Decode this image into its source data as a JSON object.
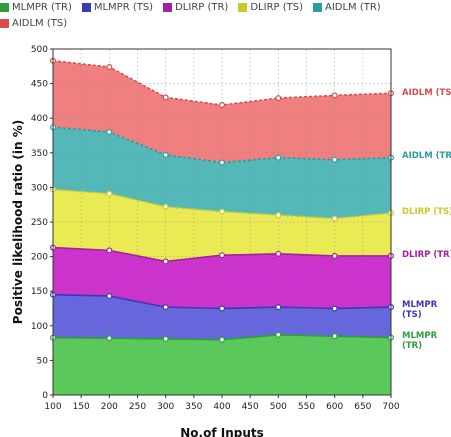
{
  "chart_data": {
    "type": "area",
    "stacked": true,
    "xlabel": "No.of Inputs",
    "ylabel": "Positive likelihood ratio (in %)",
    "x": [
      100,
      200,
      300,
      400,
      500,
      600,
      700
    ],
    "xlim": [
      100,
      700
    ],
    "ylim": [
      0,
      500
    ],
    "x_ticks": [
      100,
      150,
      200,
      250,
      300,
      350,
      400,
      450,
      500,
      550,
      600,
      650,
      700
    ],
    "y_ticks": [
      0,
      50,
      100,
      150,
      200,
      250,
      300,
      350,
      400,
      450,
      500
    ],
    "grid": true,
    "legend_position": "top",
    "series": [
      {
        "name": "MLMPR (TR)",
        "end_label": "MLMPR\n(TR)",
        "color": "#5bc85b",
        "line_color": "#2e9e3e",
        "cumulative": [
          83,
          82,
          81,
          80,
          87,
          85,
          83
        ]
      },
      {
        "name": "MLMPR (TS)",
        "end_label": "MLMPR\n(TS)",
        "color": "#6666dd",
        "line_color": "#3a3ab8",
        "cumulative": [
          145,
          143,
          127,
          125,
          127,
          125,
          127
        ]
      },
      {
        "name": "DLIRP (TR)",
        "end_label": "DLIRP (TR)",
        "color": "#cc33cc",
        "line_color": "#a0229e",
        "cumulative": [
          213,
          209,
          193,
          202,
          204,
          201,
          201
        ]
      },
      {
        "name": "DLIRP (TS)",
        "end_label": "DLIRP (TS)",
        "color": "#eaea55",
        "line_color": "#c9c92e",
        "cumulative": [
          297,
          291,
          272,
          265,
          260,
          255,
          263
        ]
      },
      {
        "name": "AIDLM (TR)",
        "end_label": "AIDLM (TR)",
        "color": "#55b8b8",
        "line_color": "#2e9c9c",
        "cumulative": [
          387,
          380,
          347,
          336,
          343,
          340,
          343
        ]
      },
      {
        "name": "AIDLM (TS)",
        "end_label": "AIDLM (TS)",
        "color": "#f07f7f",
        "line_color": "#d94c4c",
        "cumulative": [
          483,
          474,
          430,
          419,
          429,
          433,
          436
        ]
      }
    ]
  }
}
